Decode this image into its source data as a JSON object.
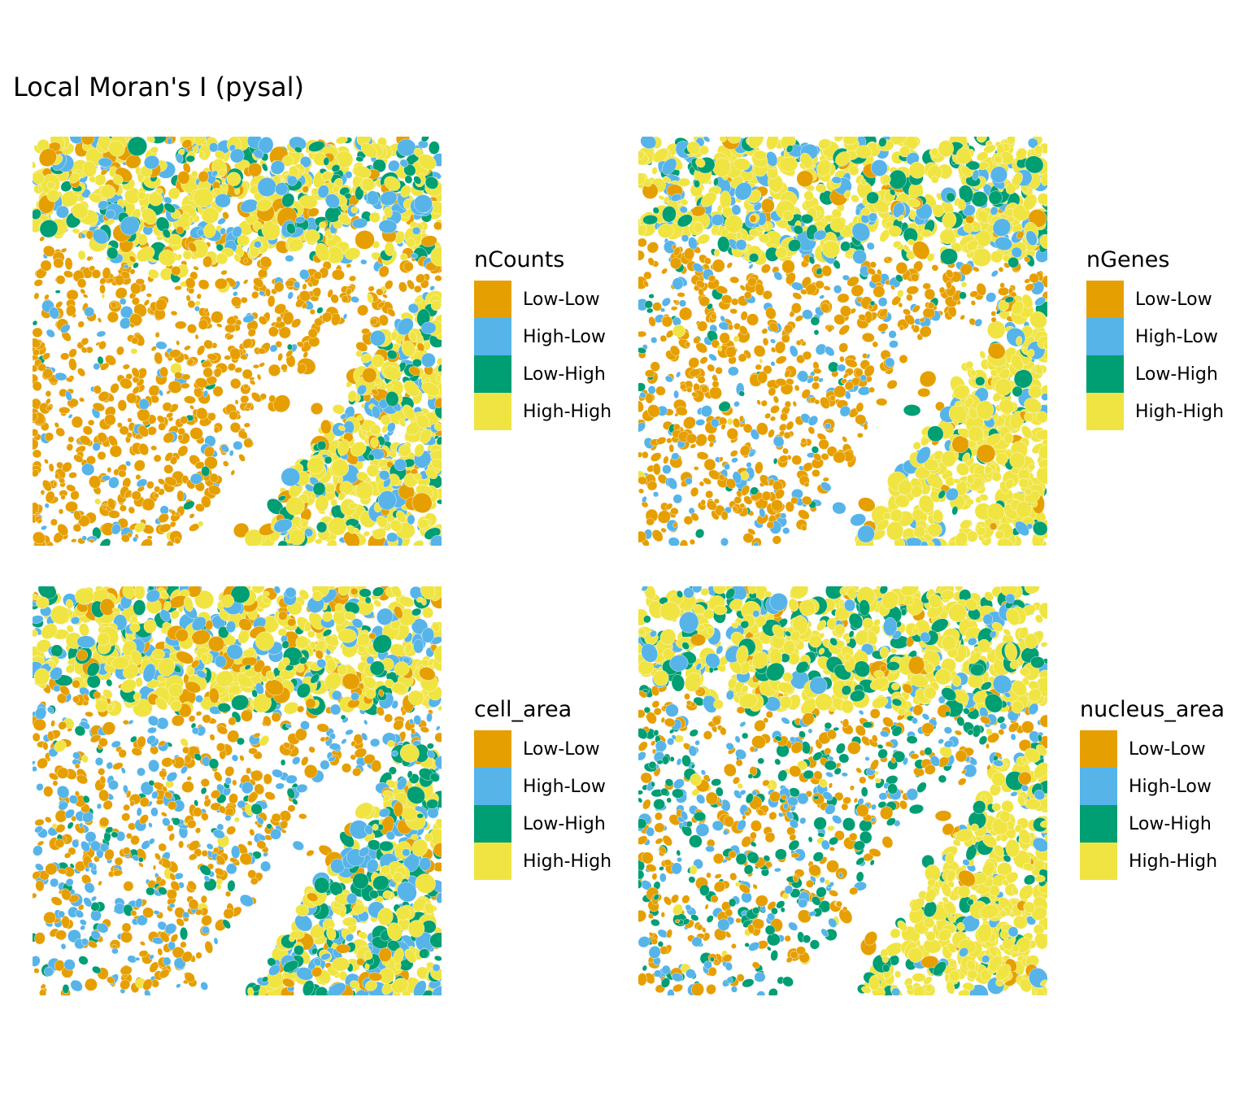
{
  "title": "Local Moran's I (pysal)",
  "categories": [
    "Low-Low",
    "High-Low",
    "Low-High",
    "High-High"
  ],
  "colors": {
    "Low-Low": "#E69F00",
    "High-Low": "#56B4E9",
    "Low-High": "#009E73",
    "High-High": "#F0E442"
  },
  "panels": [
    {
      "legend_title": "nCounts"
    },
    {
      "legend_title": "nGenes"
    },
    {
      "legend_title": "cell_area"
    },
    {
      "legend_title": "nucleus_area"
    }
  ],
  "chart_data": [
    {
      "type": "spatial-map",
      "variable": "nCounts",
      "legend": [
        "Low-Low",
        "High-Low",
        "Low-High",
        "High-High"
      ],
      "legend_placement": "right",
      "grid": false
    },
    {
      "type": "spatial-map",
      "variable": "nGenes",
      "legend": [
        "Low-Low",
        "High-Low",
        "Low-High",
        "High-High"
      ],
      "legend_placement": "right",
      "grid": false
    },
    {
      "type": "spatial-map",
      "variable": "cell_area",
      "legend": [
        "Low-Low",
        "High-Low",
        "Low-High",
        "High-High"
      ],
      "legend_placement": "right",
      "grid": false
    },
    {
      "type": "spatial-map",
      "variable": "nucleus_area",
      "legend": [
        "Low-Low",
        "High-Low",
        "Low-High",
        "High-High"
      ],
      "legend_placement": "right",
      "grid": false
    }
  ]
}
